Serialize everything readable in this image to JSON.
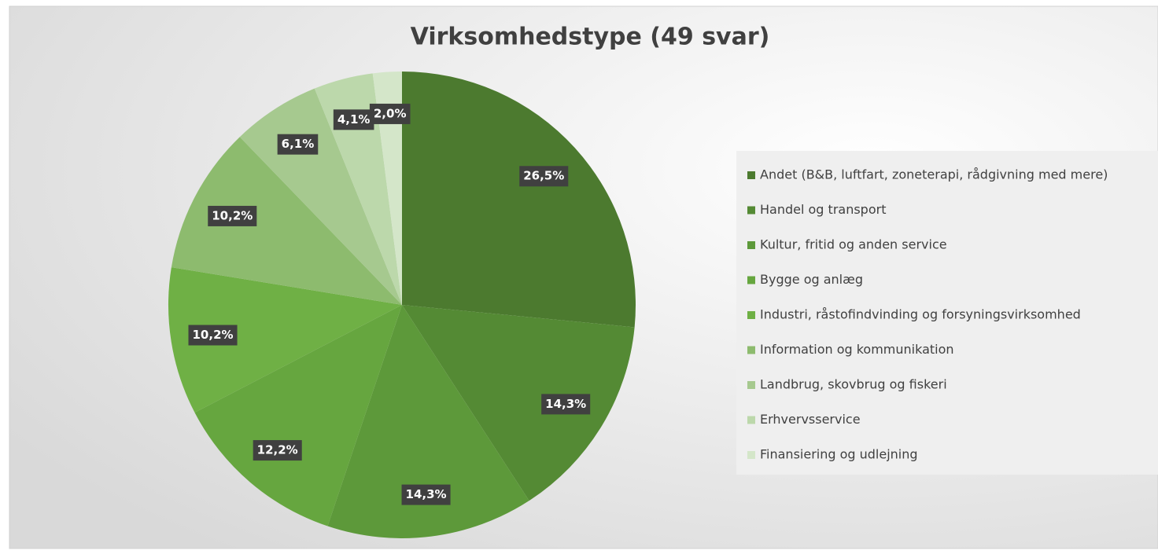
{
  "chart_data": {
    "type": "pie",
    "title": "Virksomhedstype (49 svar)",
    "categories": [
      "Andet (B&B, luftfart, zoneterapi, rådgivning med mere)",
      "Handel og transport",
      "Kultur, fritid og anden service",
      "Bygge og anlæg",
      "Industri, råstofindvinding og forsyningsvirksomhed",
      "Information og kommunikation",
      "Landbrug, skovbrug og fiskeri",
      "Erhvervsservice",
      "Finansiering og udlejning"
    ],
    "values": [
      26.5,
      14.3,
      14.3,
      12.2,
      10.2,
      10.2,
      6.1,
      4.1,
      2.0
    ],
    "value_labels": [
      "26,5%",
      "14,3%",
      "14,3%",
      "12,2%",
      "10,2%",
      "10,2%",
      "6,1%",
      "4,1%",
      "2,0%"
    ],
    "colors": [
      "#4c7a2f",
      "#548a34",
      "#5d993a",
      "#66a63f",
      "#6fb045",
      "#8dbb6e",
      "#a6c98f",
      "#bcd8ab",
      "#d4e6c9"
    ],
    "legend": "right"
  }
}
